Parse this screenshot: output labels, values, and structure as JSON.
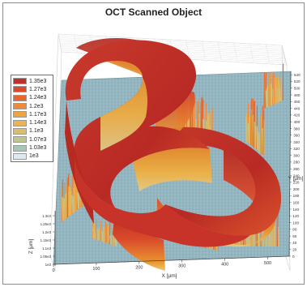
{
  "chart_data": {
    "type": "surface3d",
    "title": "OCT Scanned Object",
    "colorbar": {
      "entries": [
        {
          "label": "1.35e3",
          "value": 1350,
          "color": "#c0302a"
        },
        {
          "label": "1.27e3",
          "value": 1270,
          "color": "#d84a2a"
        },
        {
          "label": "1.24e3",
          "value": 1240,
          "color": "#e8652b"
        },
        {
          "label": "1.2e3",
          "value": 1200,
          "color": "#ee8a3a"
        },
        {
          "label": "1.17e3",
          "value": 1170,
          "color": "#f0a43e"
        },
        {
          "label": "1.14e3",
          "value": 1140,
          "color": "#e9b451"
        },
        {
          "label": "1.1e3",
          "value": 1100,
          "color": "#d8be6e"
        },
        {
          "label": "1.07e3",
          "value": 1070,
          "color": "#bfc58c"
        },
        {
          "label": "1.03e3",
          "value": 1030,
          "color": "#a6c7b5"
        },
        {
          "label": "1e3",
          "value": 1000,
          "color": "#d9ecf2"
        }
      ]
    },
    "x_axis": {
      "label": "X [μm]",
      "ticks": [
        "0",
        "100",
        "200",
        "300",
        "400",
        "500"
      ]
    },
    "y_axis": {
      "label": "Y [μm]",
      "ticks": [
        "0",
        "20",
        "40",
        "60",
        "80",
        "100",
        "120",
        "140",
        "160",
        "180",
        "200",
        "220",
        "240",
        "260",
        "280",
        "300",
        "320",
        "340",
        "360",
        "380",
        "400",
        "420",
        "440",
        "460",
        "480",
        "500",
        "520",
        "540"
      ]
    },
    "z_axis": {
      "label": "Z [μm]",
      "ticks": [
        "1e3",
        "1.05e3",
        "1.1e3",
        "1.15e3",
        "1.2e3",
        "1.25e3",
        "1.3e3"
      ]
    },
    "colors": {
      "floor": "#8fb3bf",
      "wall_dark": "#a6241d",
      "wall_light": "#d9482c",
      "top": "#c7332a"
    }
  }
}
